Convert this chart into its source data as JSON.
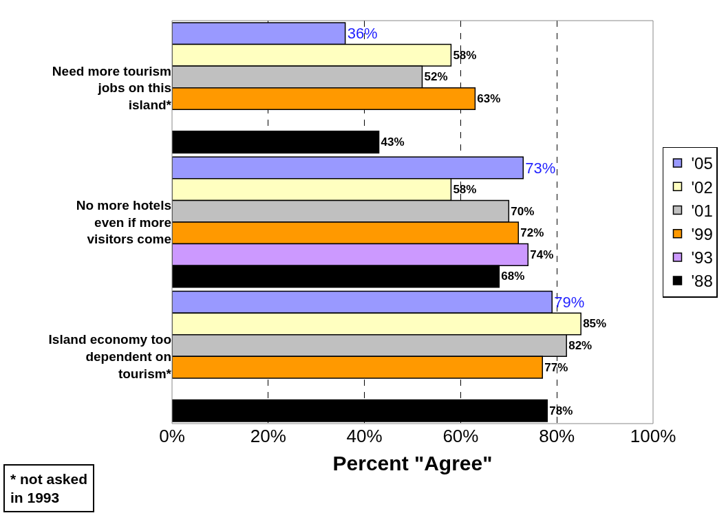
{
  "chart_data": {
    "type": "bar",
    "orientation": "horizontal",
    "categories": [
      "Need more tourism jobs on this island*",
      "No more hotels even if more visitors come",
      "Island economy too dependent on tourism*"
    ],
    "series": [
      {
        "name": "'05",
        "color": "#9999ff",
        "values": [
          36,
          73,
          79
        ],
        "value_labels": [
          "36%",
          "73%",
          "79%"
        ]
      },
      {
        "name": "'02",
        "color": "#ffffc0",
        "values": [
          58,
          58,
          85
        ],
        "value_labels": [
          "58%",
          "58%",
          "85%"
        ]
      },
      {
        "name": "'01",
        "color": "#c0c0c0",
        "values": [
          52,
          70,
          82
        ],
        "value_labels": [
          "52%",
          "70%",
          "82%"
        ]
      },
      {
        "name": "'99",
        "color": "#ff9900",
        "values": [
          63,
          72,
          77
        ],
        "value_labels": [
          "63%",
          "72%",
          "77%"
        ]
      },
      {
        "name": "'93",
        "color": "#cc99ff",
        "values": [
          null,
          74,
          null
        ],
        "value_labels": [
          null,
          "74%",
          null
        ]
      },
      {
        "name": "'88",
        "color": "#000000",
        "values": [
          43,
          68,
          78
        ],
        "value_labels": [
          "43%",
          "68%",
          "78%"
        ]
      }
    ],
    "xlim": [
      0,
      100
    ],
    "xticks": [
      {
        "value": 0,
        "label": "0%"
      },
      {
        "value": 20,
        "label": "20%"
      },
      {
        "value": 40,
        "label": "40%"
      },
      {
        "value": 60,
        "label": "60%"
      },
      {
        "value": 80,
        "label": "80%"
      },
      {
        "value": 100,
        "label": "100%"
      }
    ],
    "xlabel": "Percent \"Agree\"",
    "grid": "x",
    "legend": "right",
    "annotations": [
      "* not asked in 1993"
    ]
  }
}
